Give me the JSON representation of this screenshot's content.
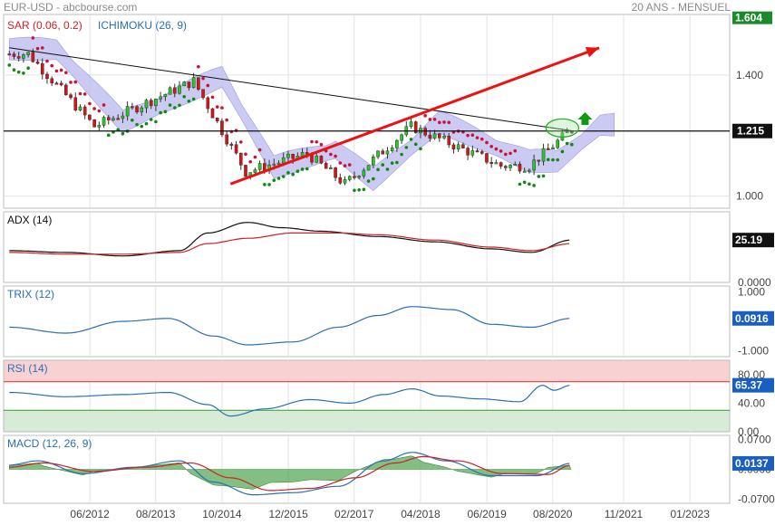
{
  "header": {
    "title": "EUR-USD - abcbourse.com",
    "period": "20 ANS - MENSUEL"
  },
  "colors": {
    "bull": "#22cc22",
    "bear": "#dd1111",
    "sar_bull": "#118811",
    "sar_bear": "#cc1133",
    "cloud": "#b8b8ee",
    "trend_arrow": "#ee1111",
    "up_arrow": "#119911",
    "value_box": "#1a8a2a",
    "value_box_blue": "#1a5fbf",
    "adx": "#111111",
    "adx_second": "#cc2222",
    "trix": "#2a6fb5",
    "rsi": "#2a6fb5",
    "rsi_overbought": "#f8d2d2",
    "rsi_oversold": "#d6ecd6",
    "macd": "#2a6fb5",
    "macd_signal": "#cc2222",
    "macd_hist": "#5aa85a"
  },
  "x_axis_labels": [
    "06/2012",
    "08/2013",
    "10/2014",
    "12/2015",
    "02/2017",
    "04/2018",
    "06/2019",
    "08/2020",
    "11/2021",
    "01/2023"
  ],
  "chart_data": [
    {
      "type": "candlestick",
      "legend": [
        {
          "text": "SAR (0.06, 0.2)",
          "color": "#cc2222"
        },
        {
          "text": "ICHIMOKU (26, 9)",
          "color": "#2a6fb5"
        }
      ],
      "y_ticks": [
        "1.604",
        "1.400",
        "1.215",
        "1.000"
      ],
      "y_tick_values": [
        1.604,
        1.4,
        1.215,
        1.0
      ],
      "ylim": [
        0.96,
        1.6
      ],
      "last_value": "1.215",
      "key_points": [
        {
          "date": "2011-05",
          "close": 1.47
        },
        {
          "date": "2012-07",
          "close": 1.23
        },
        {
          "date": "2014-04",
          "close": 1.38
        },
        {
          "date": "2015-03",
          "close": 1.08
        },
        {
          "date": "2016-04",
          "close": 1.14
        },
        {
          "date": "2016-12",
          "close": 1.04
        },
        {
          "date": "2018-02",
          "close": 1.23
        },
        {
          "date": "2019-09",
          "close": 1.1
        },
        {
          "date": "2020-03",
          "close": 1.1
        },
        {
          "date": "2020-12",
          "close": 1.22
        }
      ],
      "horizontal_line": 1.215
    },
    {
      "type": "line",
      "name": "ADX (14)",
      "y_ticks": [
        "0.0000"
      ],
      "ylim": [
        0,
        40
      ],
      "last_value": "25.19",
      "series": [
        {
          "name": "line-1",
          "color": "#111111",
          "values": [
            [
              2011,
              18
            ],
            [
              2012,
              17
            ],
            [
              2013,
              15
            ],
            [
              2014,
              18
            ],
            [
              2014.5,
              28
            ],
            [
              2015.2,
              34
            ],
            [
              2015.8,
              31
            ],
            [
              2016.5,
              29
            ],
            [
              2017.5,
              26
            ],
            [
              2018.5,
              23
            ],
            [
              2019.5,
              19
            ],
            [
              2020.2,
              17
            ],
            [
              2020.9,
              24
            ]
          ]
        },
        {
          "name": "line-2",
          "color": "#cc2222",
          "values": [
            [
              2011,
              17
            ],
            [
              2012,
              16
            ],
            [
              2013,
              16
            ],
            [
              2014,
              17
            ],
            [
              2014.5,
              22
            ],
            [
              2015.2,
              25
            ],
            [
              2016,
              28
            ],
            [
              2016.8,
              28
            ],
            [
              2017.5,
              27
            ],
            [
              2018.5,
              24
            ],
            [
              2019.5,
              20
            ],
            [
              2020.2,
              18
            ],
            [
              2020.9,
              22
            ]
          ]
        }
      ]
    },
    {
      "type": "line",
      "name": "TRIX (12)",
      "y_ticks": [
        "1.000",
        "-1.000"
      ],
      "ylim": [
        -1.2,
        1.2
      ],
      "last_value": "0.0916",
      "series": [
        {
          "name": "trix",
          "color": "#2a6fb5",
          "values": [
            [
              2011,
              -0.2
            ],
            [
              2012,
              -0.4
            ],
            [
              2013,
              0.0
            ],
            [
              2013.8,
              0.1
            ],
            [
              2014.6,
              -0.5
            ],
            [
              2015.2,
              -0.8
            ],
            [
              2016,
              -0.7
            ],
            [
              2016.8,
              -0.2
            ],
            [
              2017.5,
              0.2
            ],
            [
              2018.1,
              0.5
            ],
            [
              2018.8,
              0.4
            ],
            [
              2019.5,
              -0.1
            ],
            [
              2020.2,
              -0.2
            ],
            [
              2020.9,
              0.1
            ]
          ]
        }
      ]
    },
    {
      "type": "line",
      "name": "RSI (14)",
      "y_ticks": [
        "80.00",
        "40.00",
        "0.00"
      ],
      "ylim": [
        0,
        100
      ],
      "last_value": "65.37",
      "bands": {
        "overbought": 70,
        "oversold": 30
      },
      "series": [
        {
          "name": "rsi",
          "color": "#2a6fb5",
          "values": [
            [
              2011,
              55
            ],
            [
              2012,
              49
            ],
            [
              2013,
              52
            ],
            [
              2013.8,
              55
            ],
            [
              2014.5,
              38
            ],
            [
              2014.9,
              22
            ],
            [
              2015.5,
              32
            ],
            [
              2016.3,
              45
            ],
            [
              2017,
              40
            ],
            [
              2017.6,
              52
            ],
            [
              2018.1,
              60
            ],
            [
              2018.6,
              50
            ],
            [
              2019.3,
              46
            ],
            [
              2020,
              42
            ],
            [
              2020.4,
              65
            ],
            [
              2020.6,
              58
            ],
            [
              2020.9,
              65
            ]
          ]
        }
      ]
    },
    {
      "type": "bar",
      "name": "MACD (12, 26, 9)",
      "y_ticks": [
        "0.0700",
        "0.0000",
        "-0.0700"
      ],
      "ylim": [
        -0.08,
        0.08
      ],
      "last_value": "0.0137",
      "series": [
        {
          "name": "macd",
          "color": "#2a6fb5",
          "values": [
            [
              2011,
              0.01
            ],
            [
              2011.5,
              0.02
            ],
            [
              2012.3,
              -0.01
            ],
            [
              2013.2,
              0.005
            ],
            [
              2014,
              0.02
            ],
            [
              2014.6,
              -0.03
            ],
            [
              2015.3,
              -0.06
            ],
            [
              2016,
              -0.055
            ],
            [
              2016.8,
              -0.04
            ],
            [
              2017.6,
              0.02
            ],
            [
              2018.1,
              0.04
            ],
            [
              2018.7,
              0.02
            ],
            [
              2019.5,
              -0.015
            ],
            [
              2020.3,
              -0.015
            ],
            [
              2020.9,
              0.014
            ]
          ]
        },
        {
          "name": "signal",
          "color": "#cc2222",
          "values": [
            [
              2011,
              0.005
            ],
            [
              2011.6,
              0.015
            ],
            [
              2012.5,
              -0.005
            ],
            [
              2013.4,
              0.005
            ],
            [
              2014.2,
              0.015
            ],
            [
              2014.9,
              -0.02
            ],
            [
              2015.6,
              -0.05
            ],
            [
              2016.3,
              -0.045
            ],
            [
              2017.1,
              -0.02
            ],
            [
              2017.8,
              0.015
            ],
            [
              2018.3,
              0.03
            ],
            [
              2018.9,
              0.02
            ],
            [
              2019.7,
              -0.01
            ],
            [
              2020.5,
              -0.012
            ],
            [
              2020.9,
              0.01
            ]
          ]
        }
      ]
    }
  ]
}
